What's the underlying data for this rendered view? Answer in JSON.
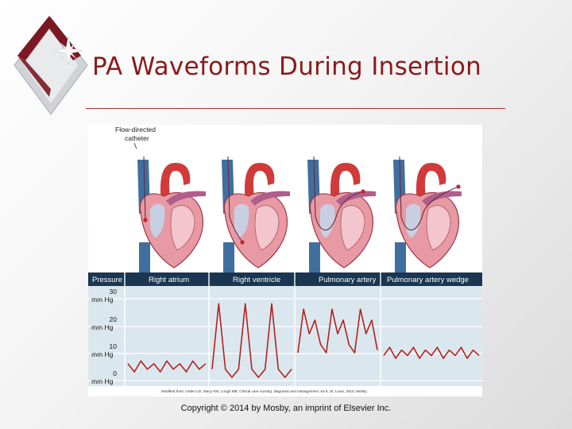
{
  "slide": {
    "title": "PA Waveforms During Insertion",
    "copyright": "Copyright © 2014 by Mosby, an imprint of Elsevier Inc."
  },
  "figure": {
    "catheter_label_line1": "Flow-directed",
    "catheter_label_line2": "catheter",
    "header": {
      "pressure": "Pressure",
      "phases": [
        "Right atrium",
        "Right ventricle",
        "Pulmonary artery",
        "Pulmonary artery wedge"
      ]
    },
    "y_axis": [
      {
        "value": "30",
        "unit": "mm Hg"
      },
      {
        "value": "20",
        "unit": "mm Hg"
      },
      {
        "value": "10",
        "unit": "mm Hg"
      },
      {
        "value": "0",
        "unit": "mm Hg"
      }
    ],
    "source_note": "Modified from: Urden LD, Stacy KM, Lough ME: Critical care nursing: diagnosis and management, ed 6, St. Louis, 2010, Mosby."
  },
  "chart_data": {
    "type": "line",
    "title": "",
    "xlabel": "",
    "ylabel": "Pressure",
    "ylim": [
      0,
      30
    ],
    "unit": "mm Hg",
    "series": [
      {
        "name": "Right atrium",
        "values": [
          5,
          2,
          6,
          3,
          5,
          2,
          6,
          3,
          5,
          2,
          6,
          3,
          5
        ]
      },
      {
        "name": "Right ventricle",
        "values": [
          3,
          27,
          3,
          0,
          3,
          27,
          3,
          0,
          3,
          27,
          3,
          0,
          3
        ]
      },
      {
        "name": "Pulmonary artery",
        "values": [
          9,
          25,
          16,
          21,
          12,
          9,
          25,
          16,
          21,
          12,
          9,
          25,
          16,
          21,
          10
        ]
      },
      {
        "name": "Pulmonary artery wedge",
        "values": [
          8,
          11,
          7,
          10,
          8,
          11,
          7,
          10,
          8,
          11,
          7,
          10,
          8,
          11,
          7,
          10,
          8
        ]
      }
    ],
    "colors": {
      "waveform": "#b3221d",
      "chart_bg": "#dbe7ef",
      "header_bg": "#1a3650",
      "vessel_red": "#d13a3a",
      "vessel_blue": "#3f6f9f",
      "heart_muscle": "#e79aa4"
    }
  }
}
